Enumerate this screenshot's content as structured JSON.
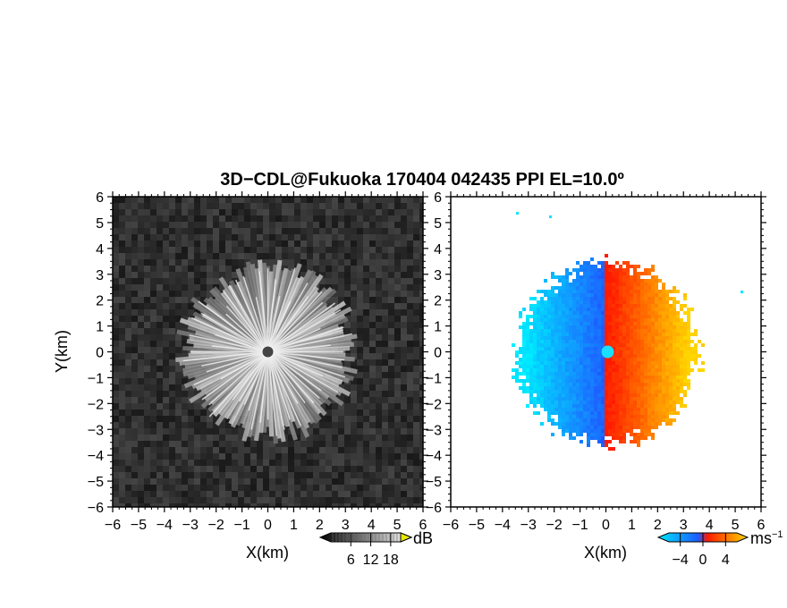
{
  "title": "3D−CDL@Fukuoka 170404 042435 PPI EL=10.0º",
  "chart_data": [
    {
      "type": "heatmap",
      "panel": "left",
      "field": "reflectivity (grayscale)",
      "xlabel": "X(km)",
      "ylabel": "Y(km)",
      "xlim": [
        -6,
        6
      ],
      "ylim": [
        -6,
        6
      ],
      "x_ticks": [
        "−6",
        "−5",
        "−4",
        "−3",
        "−2",
        "−1",
        "0",
        "1",
        "2",
        "3",
        "4",
        "5",
        "6"
      ],
      "y_ticks": [
        "6",
        "5",
        "4",
        "3",
        "2",
        "1",
        "0",
        "−1",
        "−2",
        "−3",
        "−4",
        "−5",
        "−6"
      ],
      "echo_radius_km": 3.5,
      "colorbar": {
        "unit": "dB",
        "tick_labels": [
          "6",
          "12",
          "18"
        ],
        "range": [
          0,
          21
        ],
        "colors": [
          "#000000",
          "#ffffff"
        ]
      }
    },
    {
      "type": "heatmap",
      "panel": "right",
      "field": "radial velocity",
      "xlabel": "X(km)",
      "xlim": [
        -6,
        6
      ],
      "ylim": [
        -6,
        6
      ],
      "x_ticks": [
        "−6",
        "−5",
        "−4",
        "−3",
        "−2",
        "−1",
        "0",
        "1",
        "2",
        "3",
        "4",
        "5",
        "6"
      ],
      "y_ticks": [
        "6",
        "5",
        "4",
        "3",
        "2",
        "1",
        "0",
        "−1",
        "−2",
        "−3",
        "−4",
        "−5",
        "−6"
      ],
      "echo_radius_km": 3.5,
      "colorbar": {
        "unit": "ms",
        "unit_sup": "−1",
        "tick_labels": [
          "−4",
          "0",
          "4"
        ],
        "range": [
          -6,
          6
        ],
        "colors": [
          "#00e6ff",
          "#1e5aff",
          "#ff1a00",
          "#ffd700"
        ]
      }
    }
  ]
}
